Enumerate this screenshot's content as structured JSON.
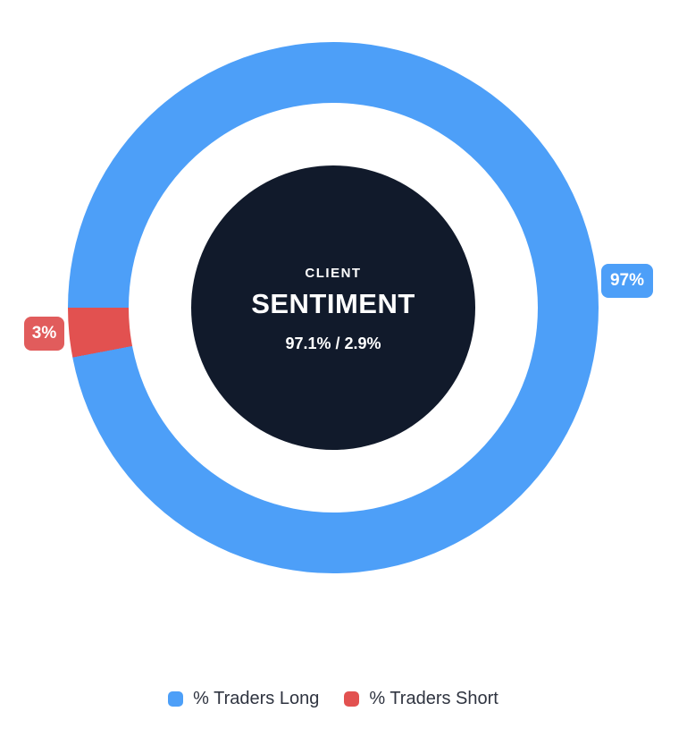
{
  "chart_data": {
    "type": "doughnut",
    "title": "CLIENT SENTIMENT",
    "center_label": {
      "line1": "CLIENT",
      "line2": "SENTIMENT",
      "values_text": "97.1% / 2.9%"
    },
    "series": [
      {
        "label": "% Traders Long",
        "value": 97,
        "precise_pct": 97.1,
        "callout": "97%",
        "color": "#4D9FF8",
        "callout_color": "#4D9FF8"
      },
      {
        "label": "% Traders Short",
        "value": 3,
        "precise_pct": 2.9,
        "callout": "3%",
        "color": "#E25150",
        "callout_color": "#E15C5C"
      }
    ],
    "legend_position": "bottom",
    "start_angle": "left (9 o'clock), clockwise",
    "grid": false,
    "colors": {
      "center_circle": "#111A2B",
      "center_text": "#FFFFFF",
      "background": "#FFFFFF",
      "legend_text": "#2F3440"
    }
  }
}
